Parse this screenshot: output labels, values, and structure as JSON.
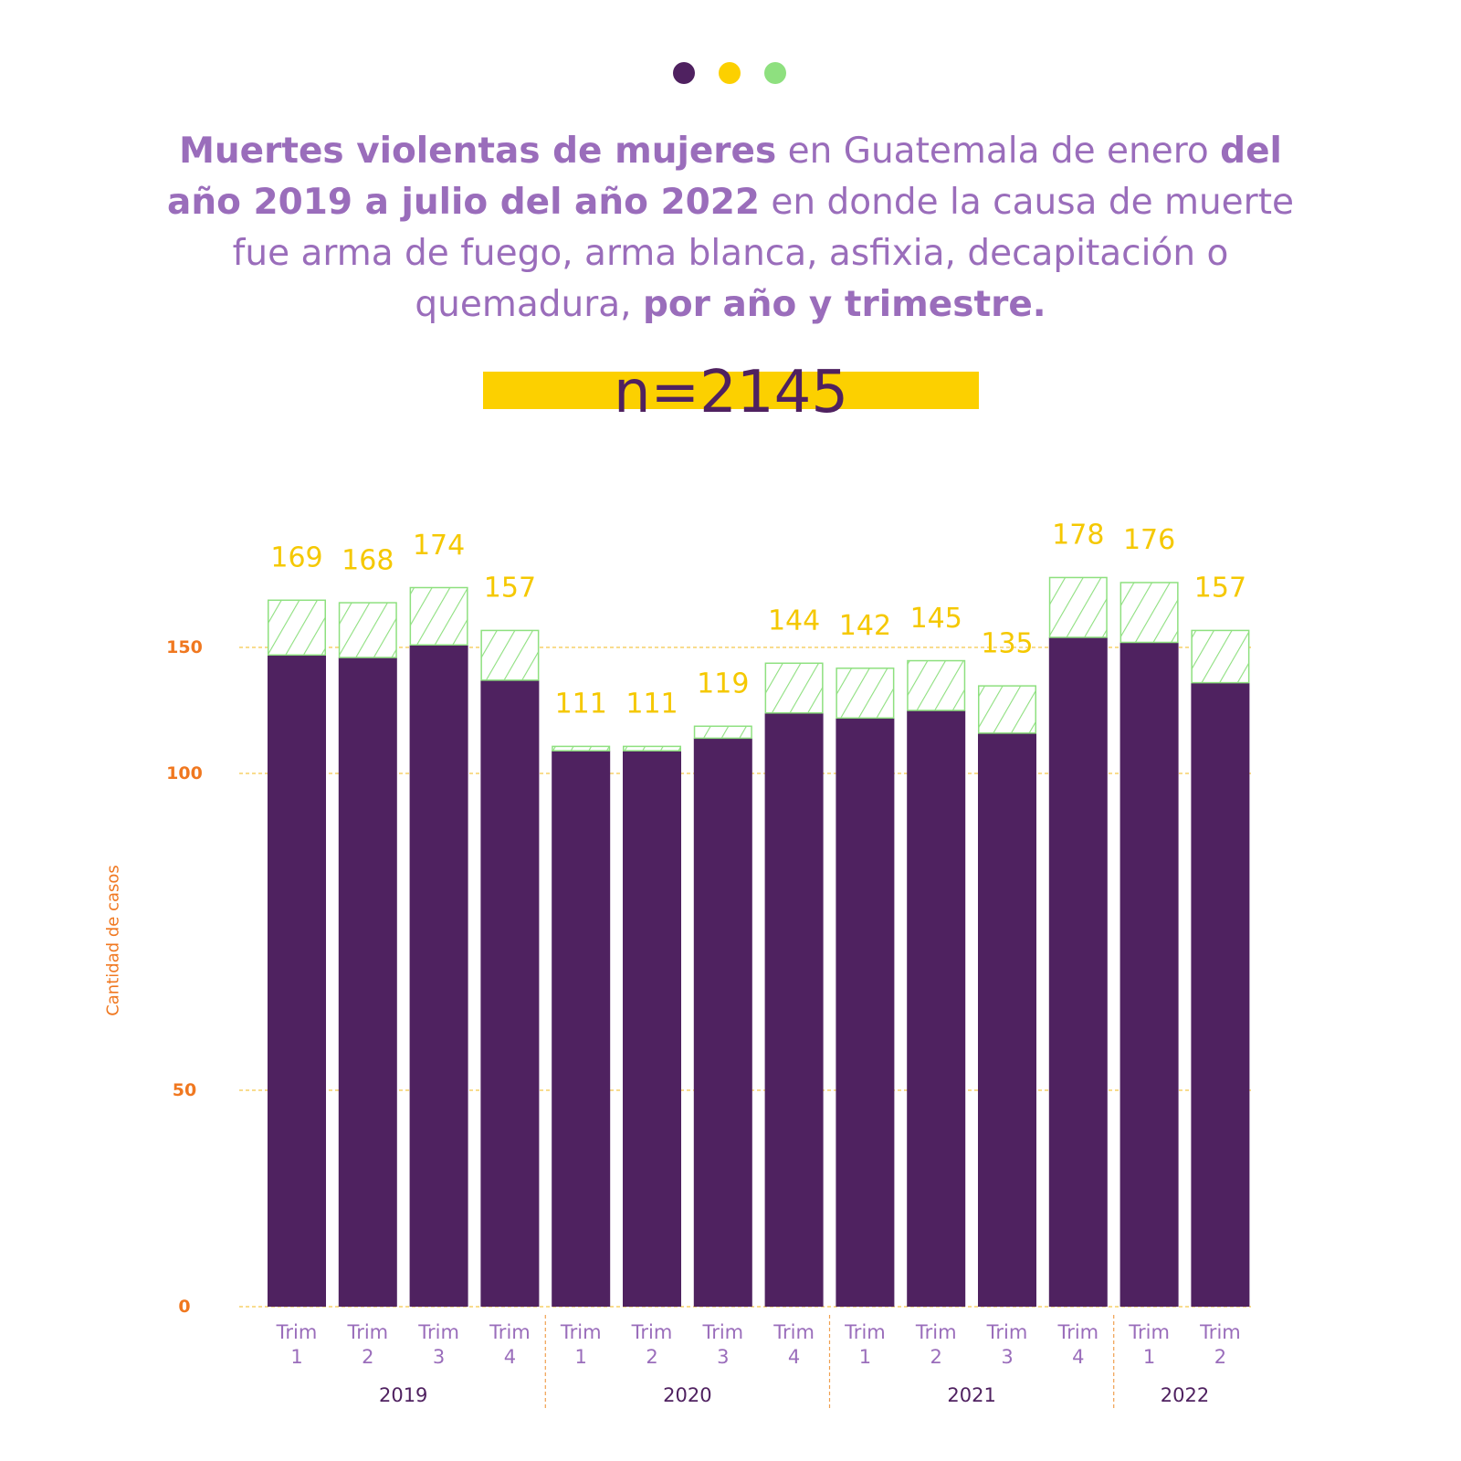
{
  "colors": {
    "dots": [
      "#4f2160",
      "#fcd000",
      "#8ee07f"
    ],
    "title": "#9a6dbb",
    "n_bar": "#fcd000",
    "n_text": "#4f2160",
    "bar_main": "#4f2260",
    "bar_top_stroke": "#8ee07f",
    "value_label": "#f5c800",
    "y_tick": "#f07820",
    "grid": "#f5c84a",
    "x_tick": "#9a6dbb",
    "year": "#4f2160",
    "year_divider": "#f0a050"
  },
  "title": {
    "b1": "Muertes violentas de mujeres",
    "t1": " en Guatemala de enero ",
    "b2": "del año 2019 a julio del año 2022",
    "t2": " en donde la causa de muerte fue arma de fuego, arma blanca, asfixia, decapitación o quemadura, ",
    "b3": "por año y trimestre."
  },
  "n_label": "n=2145",
  "chart_data": {
    "type": "bar",
    "stacked": true,
    "categories": [
      "Trim 1",
      "Trim 2",
      "Trim 3",
      "Trim 4",
      "Trim 1",
      "Trim 2",
      "Trim 3",
      "Trim 4",
      "Trim 1",
      "Trim 2",
      "Trim 3",
      "Trim 4",
      "Trim 1",
      "Trim 2"
    ],
    "category_lines": [
      [
        "Trim",
        "1"
      ],
      [
        "Trim",
        "2"
      ],
      [
        "Trim",
        "3"
      ],
      [
        "Trim",
        "4"
      ],
      [
        "Trim",
        "1"
      ],
      [
        "Trim",
        "2"
      ],
      [
        "Trim",
        "3"
      ],
      [
        "Trim",
        "4"
      ],
      [
        "Trim",
        "1"
      ],
      [
        "Trim",
        "2"
      ],
      [
        "Trim",
        "3"
      ],
      [
        "Trim",
        "4"
      ],
      [
        "Trim",
        "1"
      ],
      [
        "Trim",
        "2"
      ]
    ],
    "groups": [
      {
        "label": "2019",
        "count": 4
      },
      {
        "label": "2020",
        "count": 4
      },
      {
        "label": "2021",
        "count": 4
      },
      {
        "label": "2022",
        "count": 2
      }
    ],
    "series": [
      {
        "values": [
          147,
          146,
          151,
          137,
          109,
          109,
          114,
          124,
          122,
          125,
          116,
          154,
          152,
          136
        ],
        "pattern": "solid"
      },
      {
        "values": [
          22,
          22,
          23,
          20,
          2,
          2,
          5,
          20,
          20,
          20,
          19,
          24,
          24,
          21
        ],
        "pattern": "hatched"
      }
    ],
    "totals": [
      169,
      168,
      174,
      157,
      111,
      111,
      119,
      144,
      142,
      145,
      135,
      178,
      176,
      157
    ],
    "ylabel": "Cantidad de casos",
    "yticks": [
      0,
      50,
      100,
      150
    ],
    "ylim": [
      0,
      180
    ],
    "grid": true,
    "scale": "piecewise-linear"
  }
}
